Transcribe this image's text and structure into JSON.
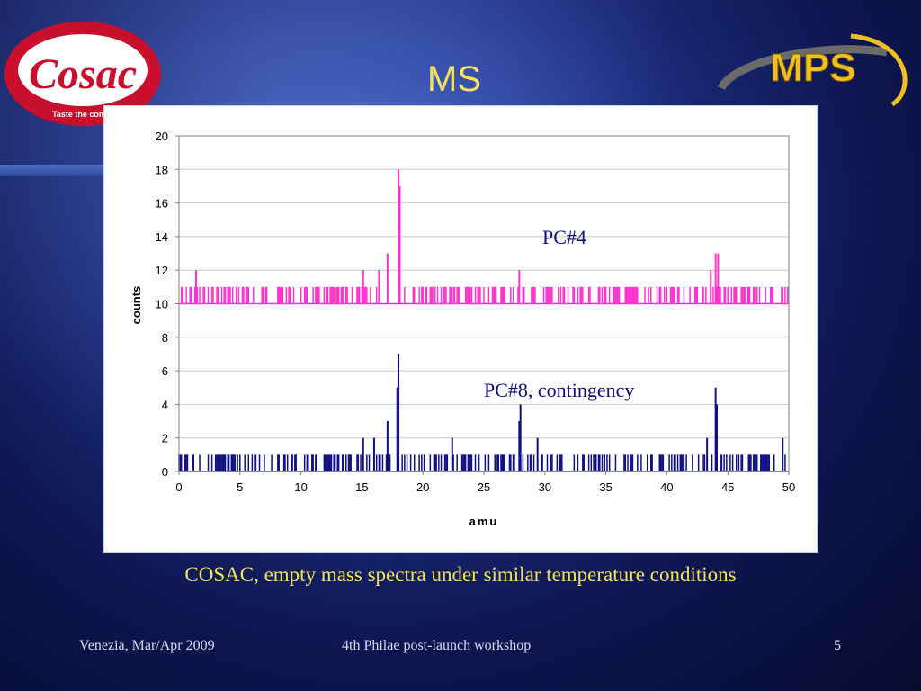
{
  "slide": {
    "title": "MS",
    "caption": "COSAC, empty mass spectra under similar temperature conditions",
    "footer_left": "Venezia, Mar/Apr 2009",
    "footer_center": "4th Philae post-launch workshop",
    "slide_number": "5"
  },
  "logos": {
    "cosac_text": "Cosac",
    "cosac_tagline": "Taste the com",
    "mps_text": "MPS"
  },
  "colors": {
    "title_yellow": "#f2e15a",
    "pc4_magenta": "#ff33cc",
    "pc8_navy": "#101080",
    "cosac_red": "#c8102e",
    "mps_gold": "#f0c020"
  },
  "chart_data": {
    "type": "bar",
    "xlabel": "amu",
    "ylabel": "counts",
    "xlim": [
      0,
      50
    ],
    "ylim": [
      0,
      20
    ],
    "xticks": [
      0,
      5,
      10,
      15,
      20,
      25,
      30,
      35,
      40,
      45,
      50
    ],
    "yticks": [
      0,
      2,
      4,
      6,
      8,
      10,
      12,
      14,
      16,
      18,
      20
    ],
    "grid": "horizontal",
    "series": [
      {
        "name": "PC#4",
        "color": "#ff33cc",
        "baseline": 10,
        "peaks": [
          {
            "x": 1.4,
            "y": 12
          },
          {
            "x": 15.1,
            "y": 12
          },
          {
            "x": 16.4,
            "y": 12
          },
          {
            "x": 17.1,
            "y": 13
          },
          {
            "x": 18.0,
            "y": 18
          },
          {
            "x": 18.1,
            "y": 17
          },
          {
            "x": 27.9,
            "y": 12
          },
          {
            "x": 43.6,
            "y": 12
          },
          {
            "x": 44.0,
            "y": 13
          },
          {
            "x": 44.2,
            "y": 13
          }
        ]
      },
      {
        "name": "PC#8, contingency",
        "color": "#101080",
        "baseline": 0,
        "peaks": [
          {
            "x": 15.1,
            "y": 2
          },
          {
            "x": 16.0,
            "y": 2
          },
          {
            "x": 17.1,
            "y": 3
          },
          {
            "x": 18.0,
            "y": 7
          },
          {
            "x": 17.9,
            "y": 5
          },
          {
            "x": 22.4,
            "y": 2
          },
          {
            "x": 28.0,
            "y": 4
          },
          {
            "x": 27.9,
            "y": 3
          },
          {
            "x": 29.4,
            "y": 2
          },
          {
            "x": 43.3,
            "y": 2
          },
          {
            "x": 44.0,
            "y": 5
          },
          {
            "x": 44.1,
            "y": 4
          },
          {
            "x": 49.5,
            "y": 2
          }
        ]
      }
    ]
  }
}
